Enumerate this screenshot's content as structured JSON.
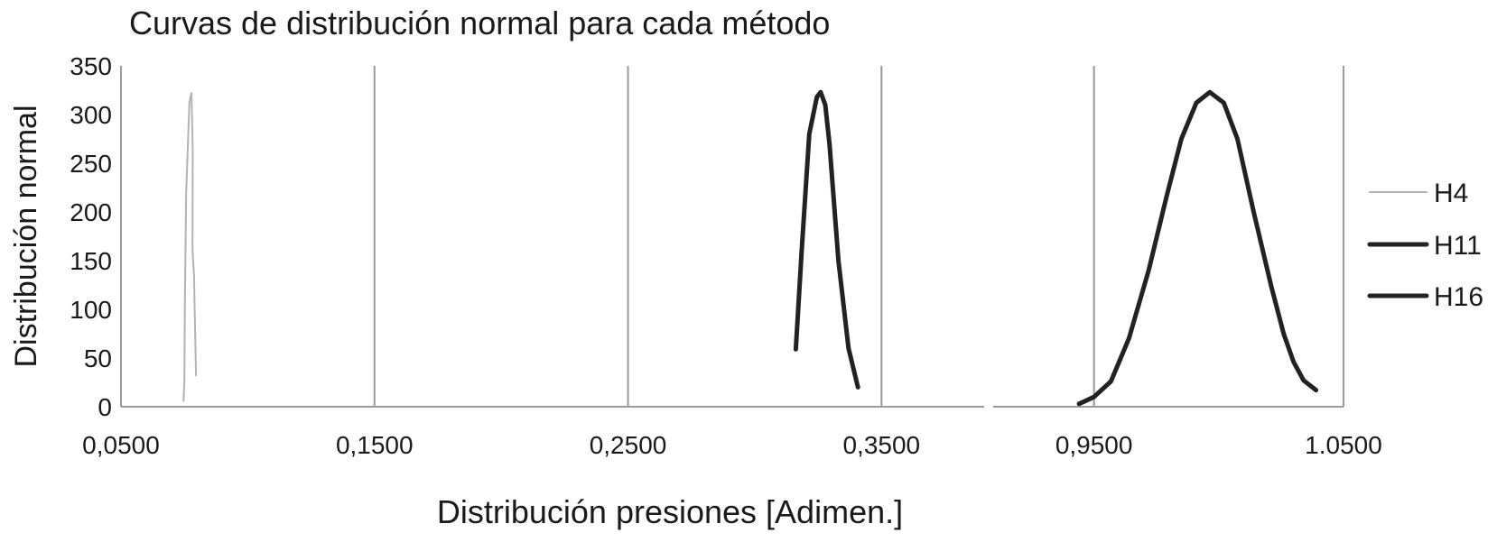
{
  "chart_data": {
    "type": "line",
    "title": "Curvas de distribución normal para cada método",
    "xlabel": "Distribución presiones [Adimen.]",
    "ylabel": "Distribución normal",
    "ylim": [
      0,
      350
    ],
    "yticks": [
      0,
      50,
      100,
      150,
      200,
      250,
      300,
      350
    ],
    "xaxis_broken": true,
    "xsegments": [
      [
        0.05,
        0.3905
      ],
      [
        0.9096,
        1.05
      ]
    ],
    "xticks": [
      0.05,
      0.15,
      0.25,
      0.35,
      0.95,
      1.05
    ],
    "xtick_labels": [
      "0,0500",
      "0,1500",
      "0,2500",
      "0,3500",
      "0,9500",
      "1.0500"
    ],
    "grid": "vertical",
    "legend_position": "right",
    "series": [
      {
        "name": "H4",
        "color": "#b3b3b3",
        "points": [
          [
            0.0747,
            6
          ],
          [
            0.075,
            25
          ],
          [
            0.0752,
            110
          ],
          [
            0.0757,
            220
          ],
          [
            0.077,
            313
          ],
          [
            0.0778,
            322
          ],
          [
            0.0783,
            262
          ],
          [
            0.0782,
            162
          ],
          [
            0.0788,
            134
          ],
          [
            0.0796,
            32
          ]
        ]
      },
      {
        "name": "H11",
        "color": "#222222",
        "points": [
          [
            0.3162,
            59
          ],
          [
            0.3185,
            160
          ],
          [
            0.3215,
            280
          ],
          [
            0.3245,
            318
          ],
          [
            0.326,
            323
          ],
          [
            0.3278,
            310
          ],
          [
            0.3295,
            270
          ],
          [
            0.333,
            150
          ],
          [
            0.337,
            60
          ],
          [
            0.3407,
            20
          ]
        ]
      },
      {
        "name": "H16",
        "color": "#222222",
        "points": [
          [
            0.944,
            3
          ],
          [
            0.95,
            10
          ],
          [
            0.9568,
            26
          ],
          [
            0.964,
            70
          ],
          [
            0.9719,
            140
          ],
          [
            0.979,
            215
          ],
          [
            0.985,
            275
          ],
          [
            0.991,
            312
          ],
          [
            0.9964,
            323
          ],
          [
            1.002,
            312
          ],
          [
            1.0075,
            275
          ],
          [
            1.014,
            200
          ],
          [
            1.021,
            124
          ],
          [
            1.026,
            75
          ],
          [
            1.03,
            46
          ],
          [
            1.034,
            27
          ],
          [
            1.039,
            17
          ]
        ]
      }
    ]
  }
}
